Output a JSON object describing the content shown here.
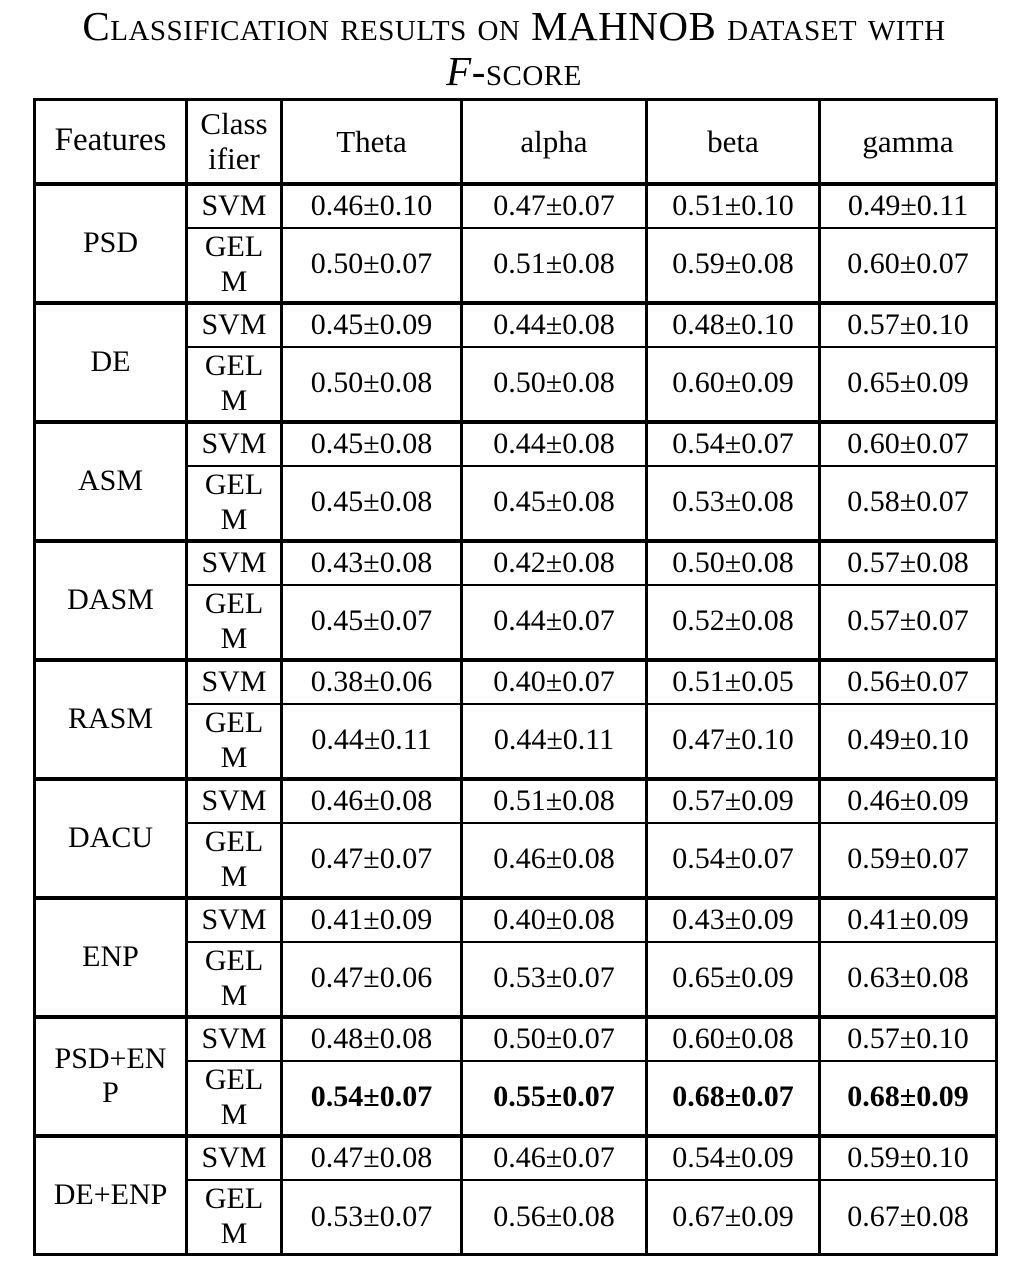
{
  "title": {
    "line1": "Classification results on MAHNOB dataset with",
    "line2_italic": "F",
    "line2_rest": "-score"
  },
  "table": {
    "headers": {
      "features": "Features",
      "classifier": "Class\nifier",
      "bands": [
        "Theta",
        "alpha",
        "beta",
        "gamma"
      ]
    },
    "groups": [
      {
        "feature": "PSD",
        "rows": [
          {
            "classifier": "SVM",
            "bold": false,
            "values": [
              "0.46±0.10",
              "0.47±0.07",
              "0.51±0.10",
              "0.49±0.11"
            ]
          },
          {
            "classifier": "GEL\nM",
            "bold": false,
            "values": [
              "0.50±0.07",
              "0.51±0.08",
              "0.59±0.08",
              "0.60±0.07"
            ]
          }
        ]
      },
      {
        "feature": "DE",
        "rows": [
          {
            "classifier": "SVM",
            "bold": false,
            "values": [
              "0.45±0.09",
              "0.44±0.08",
              "0.48±0.10",
              "0.57±0.10"
            ]
          },
          {
            "classifier": "GEL\nM",
            "bold": false,
            "values": [
              "0.50±0.08",
              "0.50±0.08",
              "0.60±0.09",
              "0.65±0.09"
            ]
          }
        ]
      },
      {
        "feature": "ASM",
        "rows": [
          {
            "classifier": "SVM",
            "bold": false,
            "values": [
              "0.45±0.08",
              "0.44±0.08",
              "0.54±0.07",
              "0.60±0.07"
            ]
          },
          {
            "classifier": "GEL\nM",
            "bold": false,
            "values": [
              "0.45±0.08",
              "0.45±0.08",
              "0.53±0.08",
              "0.58±0.07"
            ]
          }
        ]
      },
      {
        "feature": "DASM",
        "rows": [
          {
            "classifier": "SVM",
            "bold": false,
            "values": [
              "0.43±0.08",
              "0.42±0.08",
              "0.50±0.08",
              "0.57±0.08"
            ]
          },
          {
            "classifier": "GEL\nM",
            "bold": false,
            "values": [
              "0.45±0.07",
              "0.44±0.07",
              "0.52±0.08",
              "0.57±0.07"
            ]
          }
        ]
      },
      {
        "feature": "RASM",
        "rows": [
          {
            "classifier": "SVM",
            "bold": false,
            "values": [
              "0.38±0.06",
              "0.40±0.07",
              "0.51±0.05",
              "0.56±0.07"
            ]
          },
          {
            "classifier": "GEL\nM",
            "bold": false,
            "values": [
              "0.44±0.11",
              "0.44±0.11",
              "0.47±0.10",
              "0.49±0.10"
            ]
          }
        ]
      },
      {
        "feature": "DACU",
        "rows": [
          {
            "classifier": "SVM",
            "bold": false,
            "values": [
              "0.46±0.08",
              "0.51±0.08",
              "0.57±0.09",
              "0.46±0.09"
            ]
          },
          {
            "classifier": "GEL\nM",
            "bold": false,
            "values": [
              "0.47±0.07",
              "0.46±0.08",
              "0.54±0.07",
              "0.59±0.07"
            ]
          }
        ]
      },
      {
        "feature": "ENP",
        "rows": [
          {
            "classifier": "SVM",
            "bold": false,
            "values": [
              "0.41±0.09",
              "0.40±0.08",
              "0.43±0.09",
              "0.41±0.09"
            ]
          },
          {
            "classifier": "GEL\nM",
            "bold": false,
            "values": [
              "0.47±0.06",
              "0.53±0.07",
              "0.65±0.09",
              "0.63±0.08"
            ]
          }
        ]
      },
      {
        "feature": "PSD+EN\nP",
        "rows": [
          {
            "classifier": "SVM",
            "bold": false,
            "values": [
              "0.48±0.08",
              "0.50±0.07",
              "0.60±0.08",
              "0.57±0.10"
            ]
          },
          {
            "classifier": "GEL\nM",
            "bold": true,
            "values": [
              "0.54±0.07",
              "0.55±0.07",
              "0.68±0.07",
              "0.68±0.09"
            ]
          }
        ]
      },
      {
        "feature": "DE+ENP",
        "rows": [
          {
            "classifier": "SVM",
            "bold": false,
            "values": [
              "0.47±0.08",
              "0.46±0.07",
              "0.54±0.09",
              "0.59±0.10"
            ]
          },
          {
            "classifier": "GEL\nM",
            "bold": false,
            "values": [
              "0.53±0.07",
              "0.56±0.08",
              "0.67±0.09",
              "0.67±0.08"
            ]
          }
        ]
      }
    ]
  }
}
